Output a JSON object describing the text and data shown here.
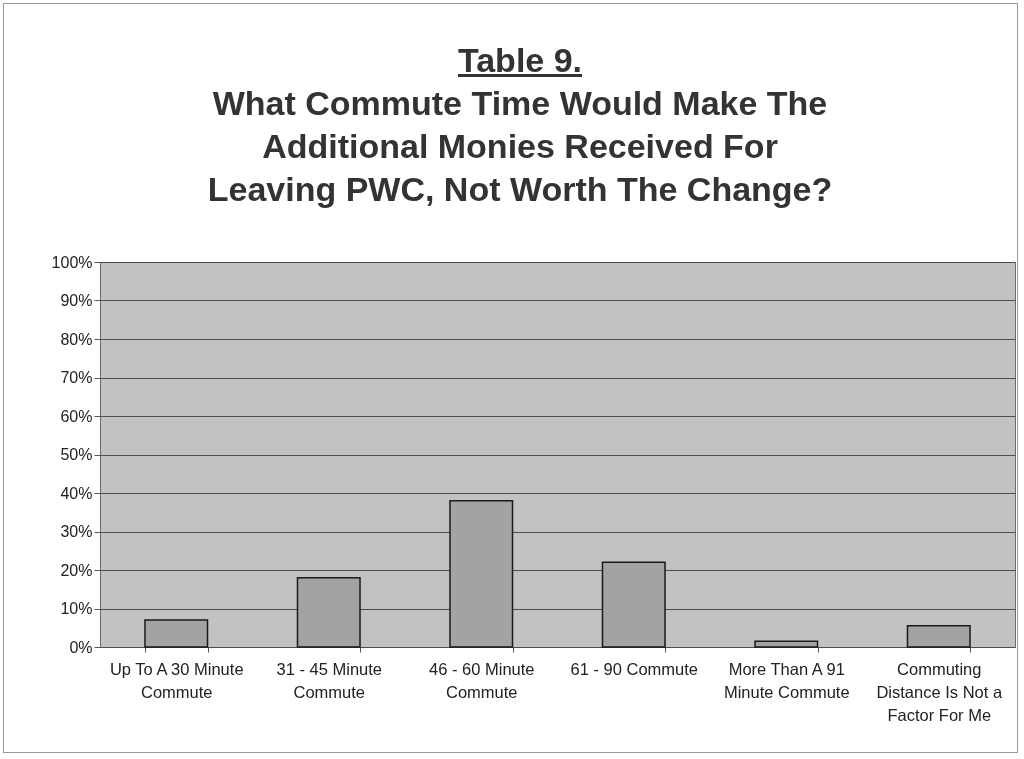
{
  "chart_data": {
    "type": "bar",
    "title": "Table 9.",
    "subtitle": "What Commute Time Would Make The Additional Monies Received For Leaving PWC, Not Worth The Change?",
    "categories": [
      "Up To A 30 Minute Commute",
      "31 - 45 Minute Commute",
      "46 - 60 Minute Commute",
      "61 - 90 Commute",
      "More Than A 91 Minute Commute",
      "Commuting Distance Is Not a Factor For Me"
    ],
    "values": [
      7,
      18,
      38,
      22,
      1.5,
      5.5
    ],
    "color": "#a3a3a3",
    "ylim": [
      0,
      100
    ],
    "yticks": [
      {
        "value": 0,
        "label": "0%"
      },
      {
        "value": 10,
        "label": "10%"
      },
      {
        "value": 20,
        "label": "20%"
      },
      {
        "value": 30,
        "label": "30%"
      },
      {
        "value": 40,
        "label": "40%"
      },
      {
        "value": 50,
        "label": "50%"
      },
      {
        "value": 60,
        "label": "60%"
      },
      {
        "value": 70,
        "label": "70%"
      },
      {
        "value": 80,
        "label": "80%"
      },
      {
        "value": 90,
        "label": "90%"
      },
      {
        "value": 100,
        "label": "100%"
      }
    ],
    "grid": "y"
  }
}
